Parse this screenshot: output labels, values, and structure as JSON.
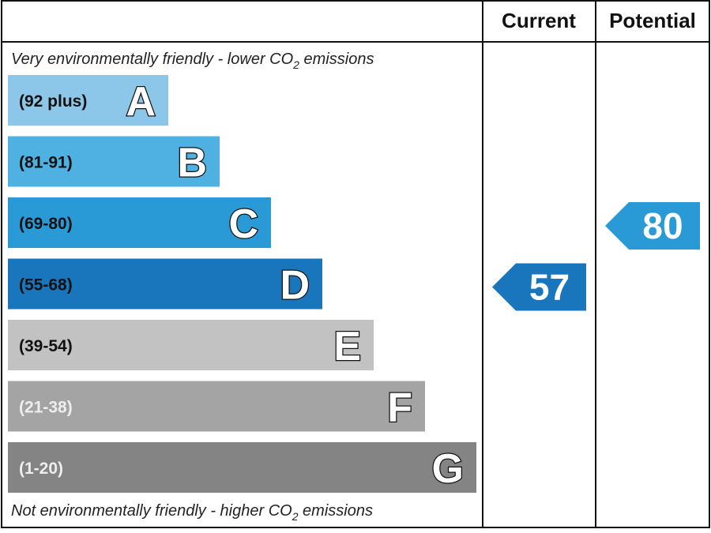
{
  "header": {
    "current_label": "Current",
    "potential_label": "Potential"
  },
  "captions": {
    "top_prefix": "Very environmentally friendly - lower CO",
    "top_subscript": "2",
    "top_suffix": " emissions",
    "bottom_prefix": "Not environmentally friendly - higher CO",
    "bottom_subscript": "2",
    "bottom_suffix": " emissions"
  },
  "chart_data": {
    "type": "bar",
    "bands": [
      {
        "letter": "A",
        "range": "(92 plus)",
        "color": "#8cc7ea",
        "range_color": "#111111"
      },
      {
        "letter": "B",
        "range": "(81-91)",
        "color": "#4fb0e2",
        "range_color": "#111111"
      },
      {
        "letter": "C",
        "range": "(69-80)",
        "color": "#2a9ad7",
        "range_color": "#111111"
      },
      {
        "letter": "D",
        "range": "(55-68)",
        "color": "#1976bd",
        "range_color": "#111111"
      },
      {
        "letter": "E",
        "range": "(39-54)",
        "color": "#c2c2c2",
        "range_color": "#111111"
      },
      {
        "letter": "F",
        "range": "(21-38)",
        "color": "#a4a4a4",
        "range_color": "#eeeeee"
      },
      {
        "letter": "G",
        "range": "(1-20)",
        "color": "#848484",
        "range_color": "#eeeeee"
      }
    ],
    "current": {
      "value": 57,
      "band": "D",
      "color": "#1976bd"
    },
    "potential": {
      "value": 80,
      "band": "C",
      "color": "#2a9ad7"
    }
  }
}
